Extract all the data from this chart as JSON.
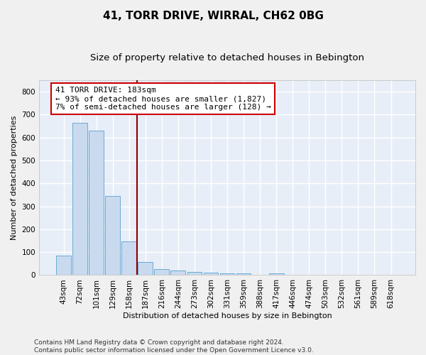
{
  "title": "41, TORR DRIVE, WIRRAL, CH62 0BG",
  "subtitle": "Size of property relative to detached houses in Bebington",
  "xlabel": "Distribution of detached houses by size in Bebington",
  "ylabel": "Number of detached properties",
  "categories": [
    "43sqm",
    "72sqm",
    "101sqm",
    "129sqm",
    "158sqm",
    "187sqm",
    "216sqm",
    "244sqm",
    "273sqm",
    "302sqm",
    "331sqm",
    "359sqm",
    "388sqm",
    "417sqm",
    "446sqm",
    "474sqm",
    "503sqm",
    "532sqm",
    "561sqm",
    "589sqm",
    "618sqm"
  ],
  "values": [
    85,
    665,
    630,
    345,
    148,
    57,
    25,
    20,
    15,
    10,
    7,
    8,
    0,
    8,
    0,
    0,
    0,
    0,
    0,
    0,
    0
  ],
  "bar_color": "#c9daef",
  "bar_edge_color": "#6aaad4",
  "background_color": "#e8eef8",
  "grid_color": "#ffffff",
  "vline_x": 4.5,
  "vline_color": "#8b0000",
  "annotation_text_line1": "41 TORR DRIVE: 183sqm",
  "annotation_text_line2": "← 93% of detached houses are smaller (1,827)",
  "annotation_text_line3": "7% of semi-detached houses are larger (128) →",
  "annotation_box_color": "#ffffff",
  "annotation_box_edge_color": "#cc0000",
  "footer_line1": "Contains HM Land Registry data © Crown copyright and database right 2024.",
  "footer_line2": "Contains public sector information licensed under the Open Government Licence v3.0.",
  "ylim": [
    0,
    850
  ],
  "yticks": [
    0,
    100,
    200,
    300,
    400,
    500,
    600,
    700,
    800
  ],
  "title_fontsize": 11,
  "subtitle_fontsize": 9.5,
  "axis_label_fontsize": 8,
  "tick_fontsize": 7.5,
  "footer_fontsize": 6.5,
  "annotation_fontsize": 8
}
